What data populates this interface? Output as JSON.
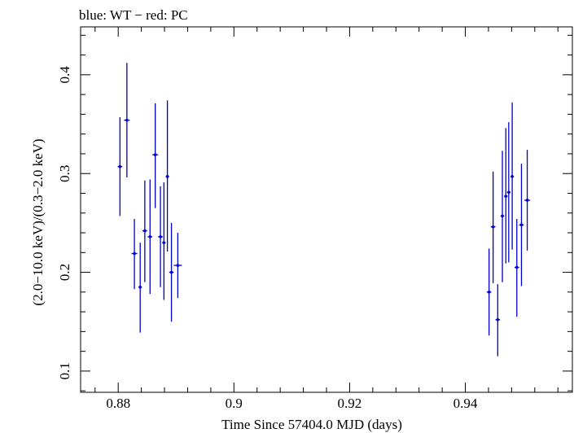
{
  "chart_data": {
    "type": "scatter",
    "title": "blue: WT − red: PC",
    "xlabel": "Time Since 57404.0 MJD (days)",
    "ylabel": "(2.0−10.0 keV)/(0.3−2.0 keV)",
    "xlim": [
      0.8735,
      0.9585
    ],
    "ylim": [
      0.0785,
      0.4485
    ],
    "x_ticks": [
      {
        "value": 0.88,
        "label": "0.88"
      },
      {
        "value": 0.9,
        "label": "0.9"
      },
      {
        "value": 0.92,
        "label": "0.92"
      },
      {
        "value": 0.94,
        "label": "0.94"
      }
    ],
    "y_ticks": [
      {
        "value": 0.1,
        "label": "0.1"
      },
      {
        "value": 0.2,
        "label": "0.2"
      },
      {
        "value": 0.3,
        "label": "0.3"
      },
      {
        "value": 0.4,
        "label": "0.4"
      }
    ],
    "grid": false,
    "series": [
      {
        "name": "WT",
        "color": "#0000cc",
        "points": [
          {
            "x": 0.8803,
            "xerr": 0.0004,
            "y": 0.307,
            "ylo": 0.257,
            "yhi": 0.357
          },
          {
            "x": 0.8815,
            "xerr": 0.0005,
            "y": 0.354,
            "ylo": 0.296,
            "yhi": 0.412
          },
          {
            "x": 0.8828,
            "xerr": 0.0005,
            "y": 0.219,
            "ylo": 0.183,
            "yhi": 0.254
          },
          {
            "x": 0.8838,
            "xerr": 0.0003,
            "y": 0.185,
            "ylo": 0.139,
            "yhi": 0.23
          },
          {
            "x": 0.8846,
            "xerr": 0.0004,
            "y": 0.242,
            "ylo": 0.19,
            "yhi": 0.293
          },
          {
            "x": 0.8855,
            "xerr": 0.0004,
            "y": 0.236,
            "ylo": 0.178,
            "yhi": 0.294
          },
          {
            "x": 0.8864,
            "xerr": 0.0005,
            "y": 0.319,
            "ylo": 0.265,
            "yhi": 0.371
          },
          {
            "x": 0.8873,
            "xerr": 0.0004,
            "y": 0.236,
            "ylo": 0.185,
            "yhi": 0.287
          },
          {
            "x": 0.8879,
            "xerr": 0.0003,
            "y": 0.23,
            "ylo": 0.172,
            "yhi": 0.291
          },
          {
            "x": 0.8885,
            "xerr": 0.0003,
            "y": 0.297,
            "ylo": 0.221,
            "yhi": 0.374
          },
          {
            "x": 0.8892,
            "xerr": 0.0004,
            "y": 0.2,
            "ylo": 0.15,
            "yhi": 0.25
          },
          {
            "x": 0.8903,
            "xerr": 0.0007,
            "y": 0.207,
            "ylo": 0.174,
            "yhi": 0.24
          },
          {
            "x": 0.9441,
            "xerr": 0.0004,
            "y": 0.18,
            "ylo": 0.136,
            "yhi": 0.224
          },
          {
            "x": 0.9448,
            "xerr": 0.0004,
            "y": 0.246,
            "ylo": 0.189,
            "yhi": 0.302
          },
          {
            "x": 0.9456,
            "xerr": 0.0004,
            "y": 0.152,
            "ylo": 0.115,
            "yhi": 0.188
          },
          {
            "x": 0.9464,
            "xerr": 0.0003,
            "y": 0.257,
            "ylo": 0.19,
            "yhi": 0.323
          },
          {
            "x": 0.947,
            "xerr": 0.0003,
            "y": 0.277,
            "ylo": 0.209,
            "yhi": 0.346
          },
          {
            "x": 0.9475,
            "xerr": 0.0003,
            "y": 0.281,
            "ylo": 0.21,
            "yhi": 0.352
          },
          {
            "x": 0.9481,
            "xerr": 0.0003,
            "y": 0.297,
            "ylo": 0.223,
            "yhi": 0.372
          },
          {
            "x": 0.9489,
            "xerr": 0.0004,
            "y": 0.205,
            "ylo": 0.155,
            "yhi": 0.254
          },
          {
            "x": 0.9497,
            "xerr": 0.0004,
            "y": 0.248,
            "ylo": 0.186,
            "yhi": 0.31
          },
          {
            "x": 0.9507,
            "xerr": 0.0005,
            "y": 0.273,
            "ylo": 0.222,
            "yhi": 0.324
          }
        ]
      }
    ]
  }
}
